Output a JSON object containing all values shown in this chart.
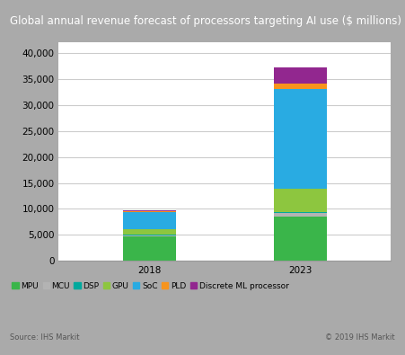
{
  "title": "Global annual revenue forecast of processors targeting AI use ($ millions)",
  "title_bg_color": "#7f7f7f",
  "title_text_color": "#ffffff",
  "categories": [
    "2018",
    "2023"
  ],
  "segments": [
    {
      "label": "MPU",
      "color": "#3ab54a",
      "values": [
        4700,
        8500
      ]
    },
    {
      "label": "MCU",
      "color": "#b3b3b3",
      "values": [
        200,
        700
      ]
    },
    {
      "label": "DSP",
      "color": "#00a99d",
      "values": [
        150,
        150
      ]
    },
    {
      "label": "GPU",
      "color": "#8dc63f",
      "values": [
        1100,
        4500
      ]
    },
    {
      "label": "SoC",
      "color": "#29abe2",
      "values": [
        3300,
        19300
      ]
    },
    {
      "label": "PLD",
      "color": "#f7941d",
      "values": [
        200,
        1000
      ]
    },
    {
      "label": "Discrete ML processor",
      "color": "#92278f",
      "values": [
        100,
        3100
      ]
    }
  ],
  "ylim": [
    0,
    42000
  ],
  "yticks": [
    0,
    5000,
    10000,
    15000,
    20000,
    25000,
    30000,
    35000,
    40000
  ],
  "ytick_labels": [
    "0",
    "5,000",
    "10,000",
    "15,000",
    "20,000",
    "25,000",
    "30,000",
    "35,000",
    "40,000"
  ],
  "bar_width": 0.35,
  "source_text": "Source: IHS Markit",
  "copyright_text": "© 2019 IHS Markit",
  "background_color": "#ffffff",
  "outer_border_color": "#aaaaaa",
  "grid_color": "#cccccc",
  "legend_fontsize": 6.5,
  "axis_fontsize": 7.5,
  "title_fontsize": 8.5
}
